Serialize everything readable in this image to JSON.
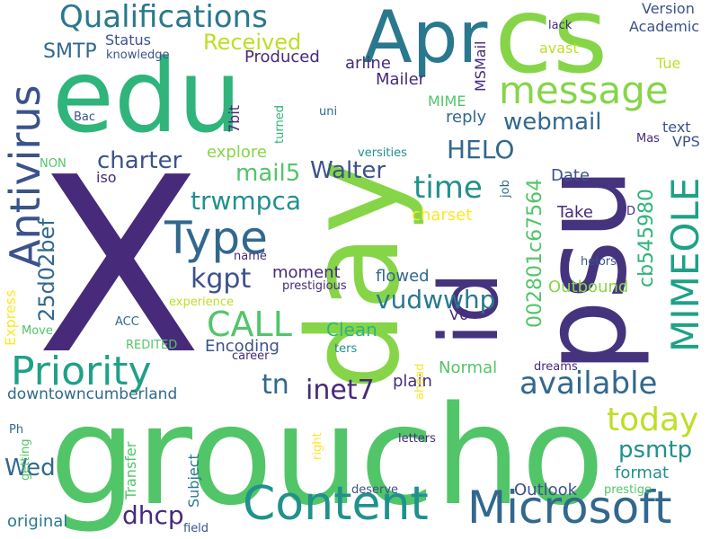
{
  "cloud": {
    "colors": {
      "dark_purple": "#472a7a",
      "purple": "#46337e",
      "indigo": "#3b528b",
      "blue": "#31688e",
      "teal_blue": "#2a788e",
      "teal": "#21918c",
      "teal_green": "#1fa187",
      "green": "#2fb47c",
      "light_green": "#52c569",
      "lime": "#86d549",
      "yellow_green": "#bddf26",
      "yellow": "#fde725"
    },
    "words": [
      {
        "text": "X",
        "color": "#472a7a"
      },
      {
        "text": "groucho",
        "color": "#52c569"
      },
      {
        "text": "day",
        "color": "#86d549"
      },
      {
        "text": "psu",
        "color": "#46337e"
      },
      {
        "text": "edu",
        "color": "#2fb47c"
      },
      {
        "text": "cs",
        "color": "#86d549"
      },
      {
        "text": "Apr",
        "color": "#2a788e"
      },
      {
        "text": "id",
        "color": "#46337e"
      },
      {
        "text": "Content",
        "color": "#21918c"
      },
      {
        "text": "Microsoft",
        "color": "#31688e"
      },
      {
        "text": "message",
        "color": "#86d549"
      },
      {
        "text": "Antivirus",
        "color": "#3b528b"
      },
      {
        "text": "Type",
        "color": "#31688e"
      },
      {
        "text": "Priority",
        "color": "#1fa187"
      },
      {
        "text": "Qualifications",
        "color": "#2a788e"
      },
      {
        "text": "MIMEOLE",
        "color": "#1fa187"
      },
      {
        "text": "available",
        "color": "#31688e"
      },
      {
        "text": "today",
        "color": "#bddf26"
      },
      {
        "text": "CALL",
        "color": "#52c569"
      },
      {
        "text": "time",
        "color": "#21918c"
      },
      {
        "text": "Received",
        "color": "#bddf26"
      },
      {
        "text": "webmail",
        "color": "#31688e"
      },
      {
        "text": "HELO",
        "color": "#31688e"
      },
      {
        "text": "Walter",
        "color": "#3b528b"
      },
      {
        "text": "charter",
        "color": "#3b528b"
      },
      {
        "text": "trwmpca",
        "color": "#21918c"
      },
      {
        "text": "mail5",
        "color": "#52c569"
      },
      {
        "text": "kgpt",
        "color": "#3b528b"
      },
      {
        "text": "inet7",
        "color": "#472a7a"
      },
      {
        "text": "tn",
        "color": "#31688e"
      },
      {
        "text": "vudwwhp",
        "color": "#2a788e"
      },
      {
        "text": "psmtp",
        "color": "#21918c"
      },
      {
        "text": "dhcp",
        "color": "#472a7a"
      },
      {
        "text": "Wed",
        "color": "#31688e"
      },
      {
        "text": "downtowncumberland",
        "color": "#31688e"
      },
      {
        "text": "SMTP",
        "color": "#31688e"
      },
      {
        "text": "002801c67564",
        "color": "#52c569"
      },
      {
        "text": "cb545980",
        "color": "#2fb47c"
      },
      {
        "text": "25d02bef",
        "color": "#31688e"
      },
      {
        "text": "Clean",
        "color": "#2fb47c"
      },
      {
        "text": "Normal",
        "color": "#52c569"
      },
      {
        "text": "plain",
        "color": "#472a7a"
      },
      {
        "text": "flowed",
        "color": "#31688e"
      },
      {
        "text": "moment",
        "color": "#472a7a"
      },
      {
        "text": "Encoding",
        "color": "#3b528b"
      },
      {
        "text": "Status",
        "color": "#3b528b"
      },
      {
        "text": "Produced",
        "color": "#472a7a"
      },
      {
        "text": "Mailer",
        "color": "#472a7a"
      },
      {
        "text": "arline",
        "color": "#472a7a"
      },
      {
        "text": "explore",
        "color": "#86d549"
      },
      {
        "text": "reply",
        "color": "#31688e"
      },
      {
        "text": "Date",
        "color": "#3b528b"
      },
      {
        "text": "Take",
        "color": "#472a7a"
      },
      {
        "text": "charset",
        "color": "#fde725"
      },
      {
        "text": "Outbound",
        "color": "#86d549"
      },
      {
        "text": "format",
        "color": "#21918c"
      },
      {
        "text": "Outlook",
        "color": "#3b528b"
      },
      {
        "text": "original",
        "color": "#2a788e"
      },
      {
        "text": "Version",
        "color": "#3b528b"
      },
      {
        "text": "Academic",
        "color": "#3b528b"
      },
      {
        "text": "avast",
        "color": "#bddf26"
      },
      {
        "text": "Tue",
        "color": "#bddf26"
      },
      {
        "text": "text",
        "color": "#3b528b"
      },
      {
        "text": "VPS",
        "color": "#3b528b"
      },
      {
        "text": "MIME",
        "color": "#52c569"
      },
      {
        "text": "iso",
        "color": "#472a7a"
      },
      {
        "text": "V6",
        "color": "#472a7a"
      },
      {
        "text": "7bit",
        "color": "#472a7a"
      },
      {
        "text": "MSMail",
        "color": "#472a7a"
      },
      {
        "text": "Express",
        "color": "#fde725"
      },
      {
        "text": "Transfer",
        "color": "#52c569"
      },
      {
        "text": "Subject",
        "color": "#2a788e"
      },
      {
        "text": "prestige",
        "color": "#52c569"
      },
      {
        "text": "deserve",
        "color": "#3b528b"
      },
      {
        "text": "field",
        "color": "#3b528b"
      },
      {
        "text": "letters",
        "color": "#472a7a"
      },
      {
        "text": "dreams",
        "color": "#472a7a"
      },
      {
        "text": "career",
        "color": "#472a7a"
      },
      {
        "text": "ters",
        "color": "#21918c"
      },
      {
        "text": "Move",
        "color": "#52c569"
      },
      {
        "text": "ACC",
        "color": "#31688e"
      },
      {
        "text": "REDITED",
        "color": "#52c569"
      },
      {
        "text": "experience",
        "color": "#bddf26"
      },
      {
        "text": "name",
        "color": "#472a7a"
      },
      {
        "text": "prestigious",
        "color": "#472a7a"
      },
      {
        "text": "helors",
        "color": "#3b528b"
      },
      {
        "text": "knowledge",
        "color": "#3b528b"
      },
      {
        "text": "lack",
        "color": "#472a7a"
      },
      {
        "text": "Mas",
        "color": "#472a7a"
      },
      {
        "text": "job",
        "color": "#31688e"
      },
      {
        "text": "D",
        "color": "#472a7a"
      },
      {
        "text": "uni",
        "color": "#31688e"
      },
      {
        "text": "turned",
        "color": "#2fb47c"
      },
      {
        "text": "versities",
        "color": "#21918c"
      },
      {
        "text": "Bac",
        "color": "#3b528b"
      },
      {
        "text": "NON",
        "color": "#52c569"
      },
      {
        "text": "Ph",
        "color": "#31688e"
      },
      {
        "text": "getting",
        "color": "#52c569"
      },
      {
        "text": "right",
        "color": "#fde725"
      },
      {
        "text": "ahead",
        "color": "#fde725"
      }
    ]
  }
}
